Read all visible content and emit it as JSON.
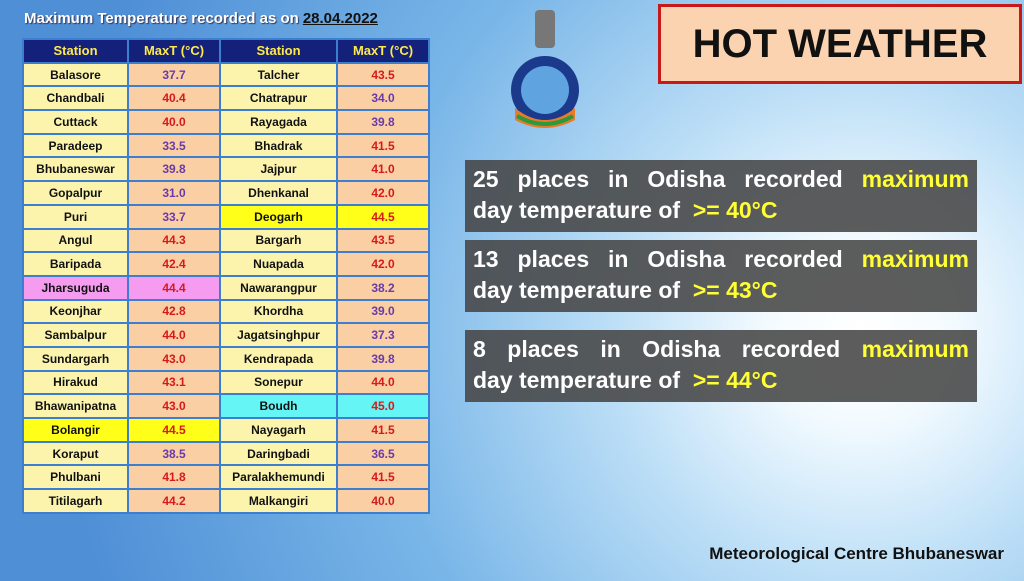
{
  "header": {
    "title": "Maximum Temperature recorded as on",
    "date": "28.04.2022"
  },
  "table": {
    "columns": [
      "Station",
      "MaxT (°C)",
      "Station",
      "MaxT (°C)"
    ],
    "rows": [
      [
        "Balasore",
        "37.7",
        "Talcher",
        "43.5"
      ],
      [
        "Chandbali",
        "40.4",
        "Chatrapur",
        "34.0"
      ],
      [
        "Cuttack",
        "40.0",
        "Rayagada",
        "39.8"
      ],
      [
        "Paradeep",
        "33.5",
        "Bhadrak",
        "41.5"
      ],
      [
        "Bhubaneswar",
        "39.8",
        "Jajpur",
        "41.0"
      ],
      [
        "Gopalpur",
        "31.0",
        "Dhenkanal",
        "42.0"
      ],
      [
        "Puri",
        "33.7",
        "Deogarh",
        "44.5"
      ],
      [
        "Angul",
        "44.3",
        "Bargarh",
        "43.5"
      ],
      [
        "Baripada",
        "42.4",
        "Nuapada",
        "42.0"
      ],
      [
        "Jharsuguda",
        "44.4",
        "Nawarangpur",
        "38.2"
      ],
      [
        "Keonjhar",
        "42.8",
        "Khordha",
        "39.0"
      ],
      [
        "Sambalpur",
        "44.0",
        "Jagatsinghpur",
        "37.3"
      ],
      [
        "Sundargarh",
        "43.0",
        "Kendrapada",
        "39.8"
      ],
      [
        "Hirakud",
        "43.1",
        "Sonepur",
        "44.0"
      ],
      [
        "Bhawanipatna",
        "43.0",
        "Boudh",
        "45.0"
      ],
      [
        "Bolangir",
        "44.5",
        "Nayagarh",
        "41.5"
      ],
      [
        "Koraput",
        "38.5",
        "Daringbadi",
        "36.5"
      ],
      [
        "Phulbani",
        "41.8",
        "Paralakhemundi",
        "41.5"
      ],
      [
        "Titilagarh",
        "44.2",
        "Malkangiri",
        "40.0"
      ]
    ],
    "highlights": [
      {
        "row": 9,
        "side": 0,
        "color": "#f59cf0"
      },
      {
        "row": 6,
        "side": 1,
        "color": "#ffff1a"
      },
      {
        "row": 14,
        "side": 1,
        "color": "#66f5f5"
      },
      {
        "row": 15,
        "side": 0,
        "color": "#ffff1a"
      }
    ]
  },
  "banner": "HOT WEATHER",
  "statements": [
    {
      "line1": "25 places in Odisha recorded",
      "emphasis": "maximum",
      "line2": "day temperature of",
      "threshold": ">= 40°C"
    },
    {
      "line1": "13 places in Odisha recorded",
      "emphasis": "maximum",
      "line2": "day temperature of",
      "threshold": ">= 43°C"
    },
    {
      "line1": "8 places in Odisha recorded",
      "emphasis": "maximum",
      "line2": "day temperature of",
      "threshold": ">= 44°C"
    }
  ],
  "footer": "Meteorological Centre Bhubaneswar"
}
